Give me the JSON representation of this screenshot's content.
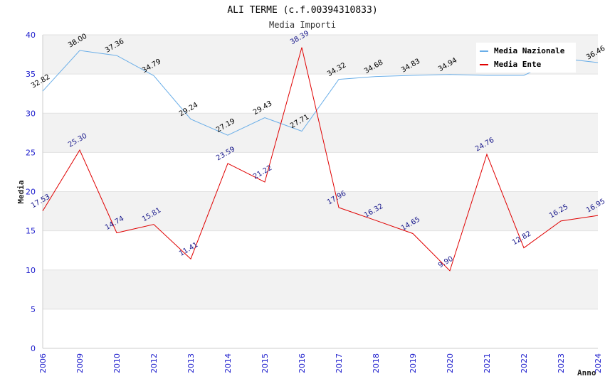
{
  "chart_data": {
    "type": "line",
    "title": "ALI TERME (c.f.00394310833)",
    "subtitle": "Media Importi",
    "xlabel": "Anno",
    "ylabel": "Media",
    "ylim": [
      0,
      40
    ],
    "yticks": [
      "0",
      "5",
      "10",
      "15",
      "20",
      "25",
      "30",
      "35",
      "40"
    ],
    "categories": [
      "2006",
      "2009",
      "2010",
      "2012",
      "2013",
      "2014",
      "2015",
      "2016",
      "2017",
      "2018",
      "2019",
      "2020",
      "2021",
      "2022",
      "2023",
      "2024"
    ],
    "series": [
      {
        "name": "Media Nazionale",
        "color": "#6aaee8",
        "values": [
          32.82,
          38.0,
          37.36,
          34.79,
          29.24,
          27.19,
          29.43,
          27.71,
          34.32,
          34.68,
          34.83,
          34.94,
          34.83,
          34.83,
          37.0,
          36.46
        ],
        "labels": [
          "32.82",
          "38.00",
          "37.36",
          "34.79",
          "29.24",
          "27.19",
          "29.43",
          "27.71",
          "34.32",
          "34.68",
          "34.83",
          "34.94",
          "",
          "",
          "",
          "36.46"
        ]
      },
      {
        "name": "Media Ente",
        "color": "#e00000",
        "values": [
          17.53,
          25.3,
          14.74,
          15.81,
          11.41,
          23.59,
          21.22,
          38.39,
          17.96,
          16.32,
          14.65,
          9.9,
          24.76,
          12.82,
          16.25,
          16.95
        ],
        "labels": [
          "17.53",
          "25.30",
          "14.74",
          "15.81",
          "11.41",
          "23.59",
          "21.22",
          "38.39",
          "17.96",
          "16.32",
          "14.65",
          "9.90",
          "24.76",
          "12.82",
          "16.25",
          "16.95"
        ]
      }
    ],
    "legend_position": "top-right"
  }
}
